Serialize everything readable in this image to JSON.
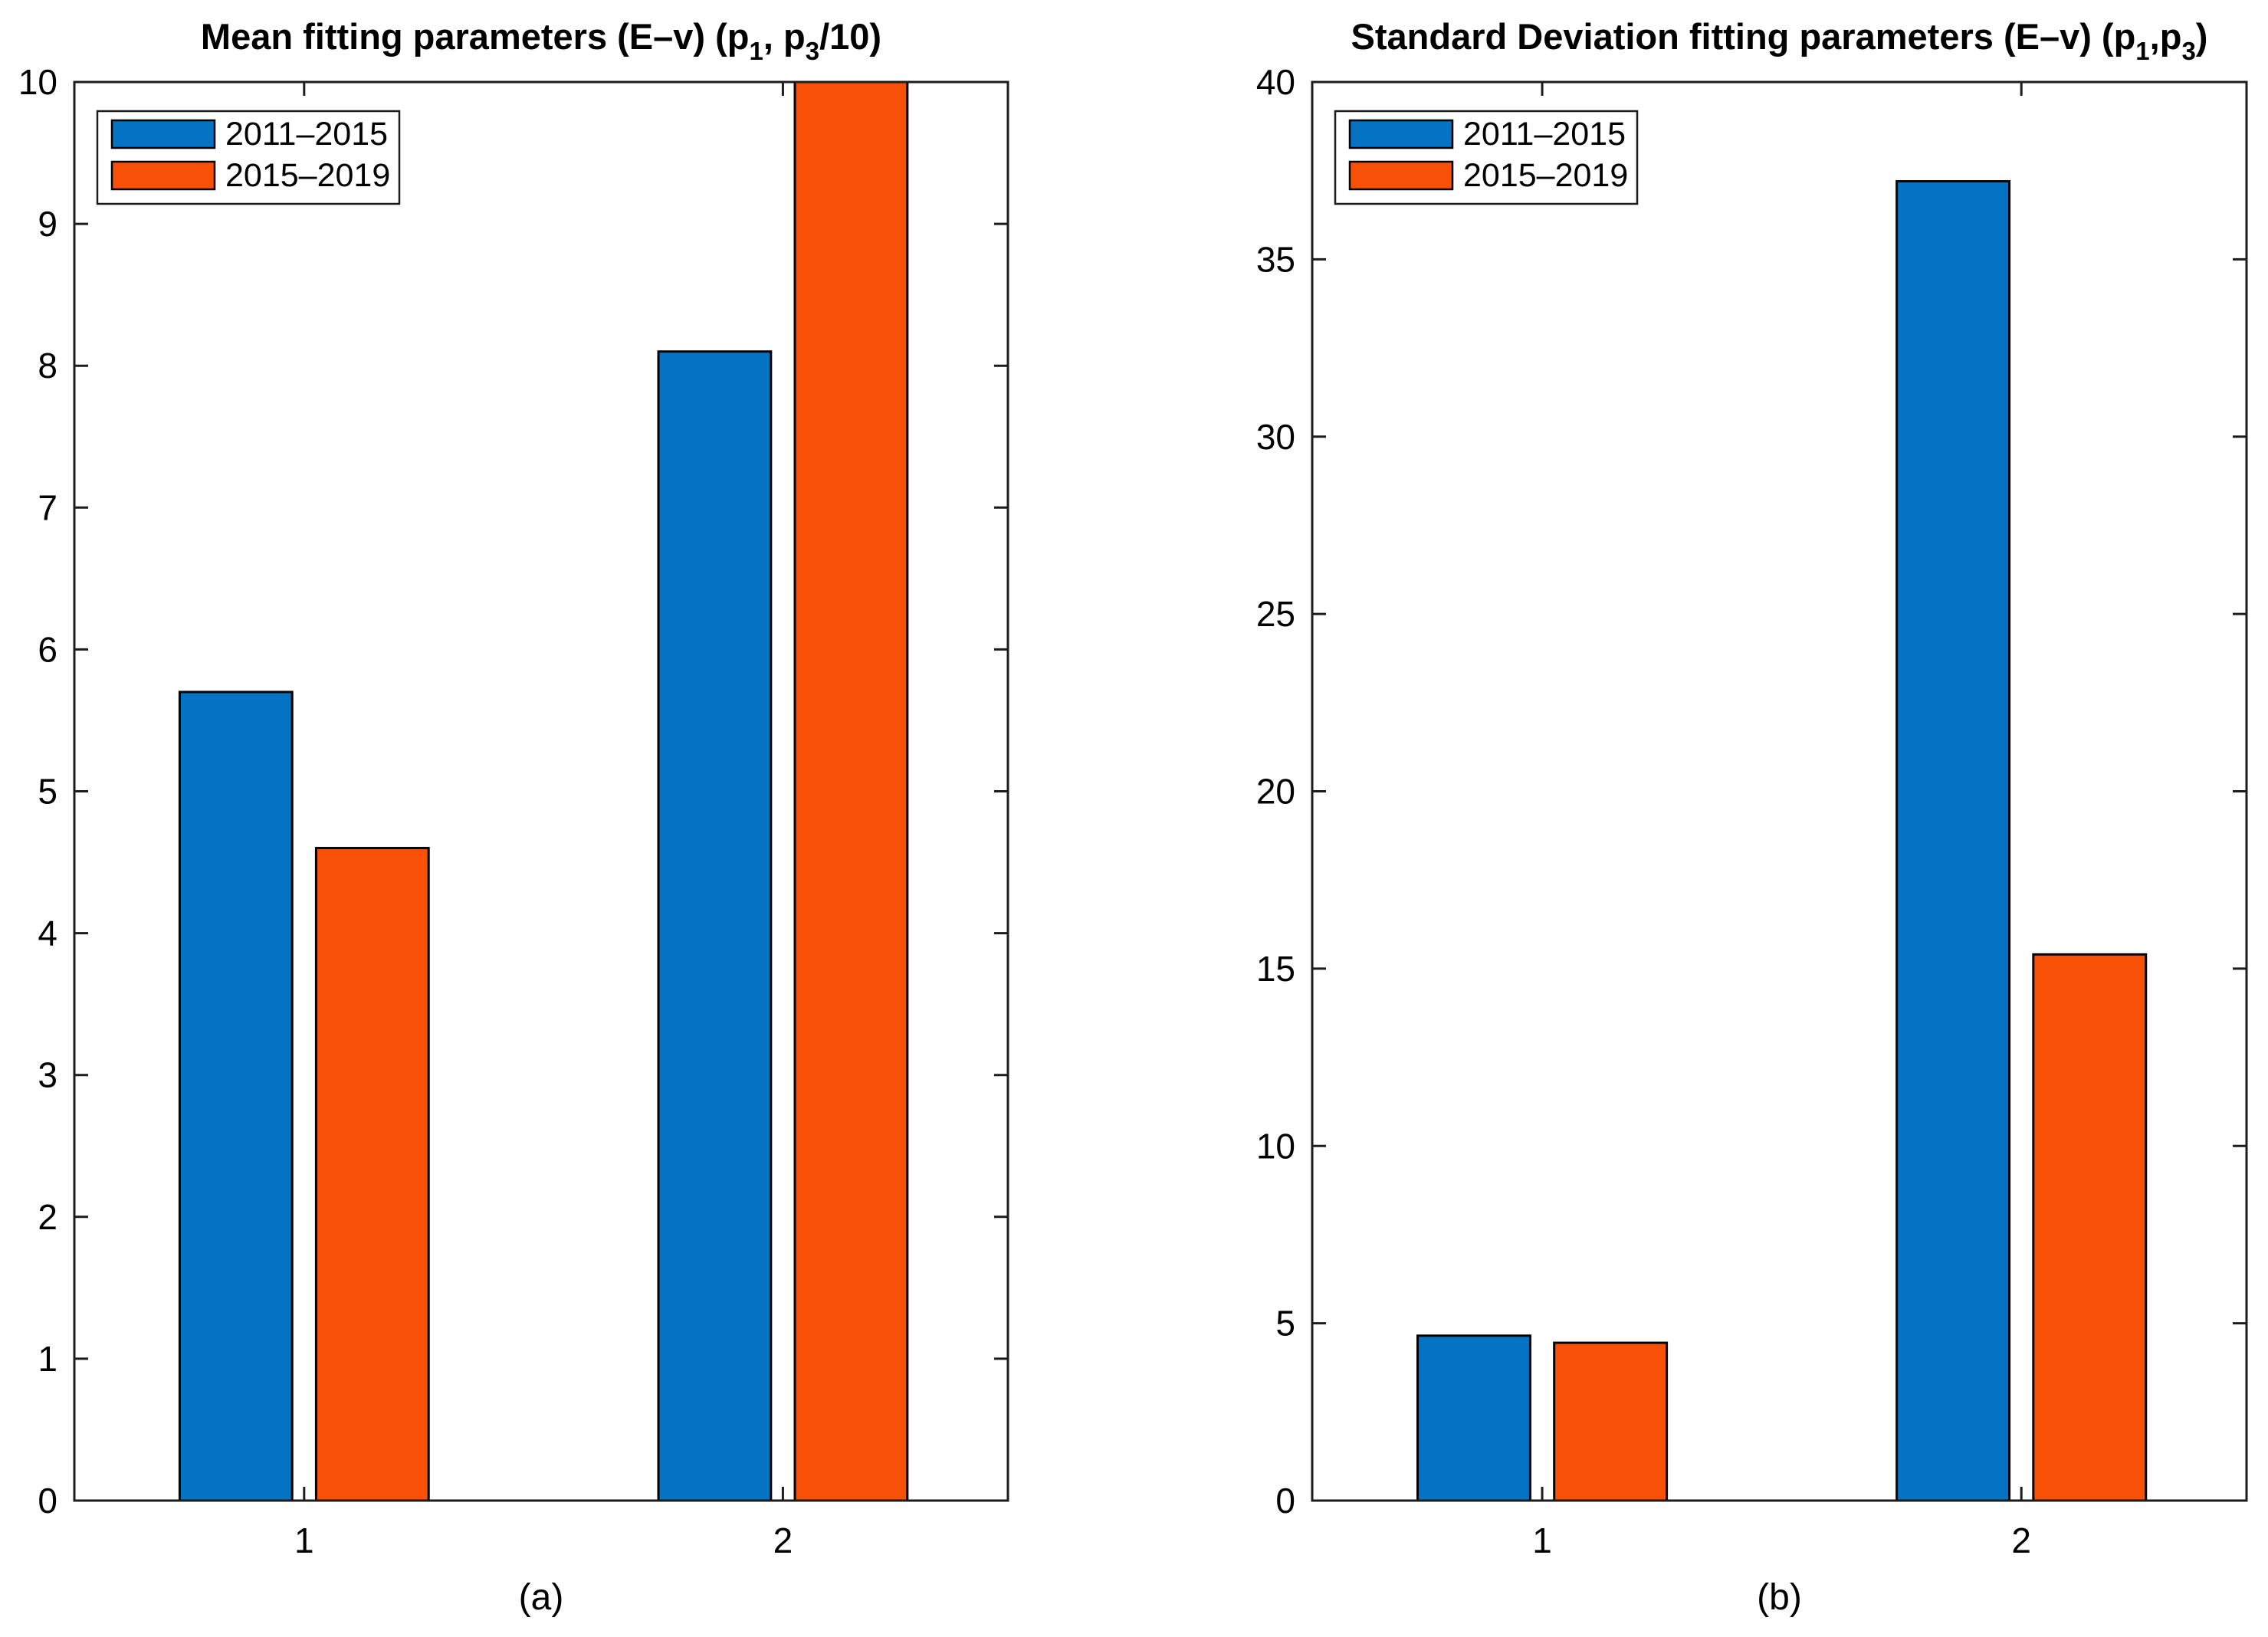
{
  "figure": {
    "background": "#ffffff",
    "panel_captions": [
      "(a)",
      "(b)"
    ]
  },
  "style": {
    "axis_color": "#1c1c1c",
    "bar_edge_color": "#000000",
    "text_color": "#000000",
    "legend_background": "#ffffff",
    "series_colors": {
      "2011-2015": "#0473C4",
      "2015-2019": "#F85107"
    }
  },
  "chart_data": [
    {
      "type": "bar",
      "panel": "a",
      "caption": "(a)",
      "title_parts": [
        {
          "text": "Mean fitting parameters (E–v) (p"
        },
        {
          "text": "1",
          "sub": true
        },
        {
          "text": ", p"
        },
        {
          "text": "3",
          "sub": true
        },
        {
          "text": "/10)"
        }
      ],
      "categories": [
        "1",
        "2"
      ],
      "x_positions": [
        1,
        2
      ],
      "series": [
        {
          "name": "2011–2015",
          "color": "#0473C4",
          "values": [
            5.7,
            8.1
          ]
        },
        {
          "name": "2015–2019",
          "color": "#F85107",
          "values": [
            4.6,
            10.0
          ]
        }
      ],
      "xlabel": "",
      "ylabel": "",
      "ylim": [
        0,
        10
      ],
      "yticks": [
        0,
        1,
        2,
        3,
        4,
        5,
        6,
        7,
        8,
        9,
        10
      ],
      "xlim": [
        0.52,
        2.47
      ],
      "grid": false,
      "axes_box": true,
      "tick_dir": "in",
      "legend": {
        "position": "top-left",
        "entries": [
          "2011–2015",
          "2015–2019"
        ]
      },
      "bar_width_units": 0.235,
      "bar_offset_units": 0.1425
    },
    {
      "type": "bar",
      "panel": "b",
      "caption": "(b)",
      "title_parts": [
        {
          "text": "Standard Deviation fitting parameters (E–v) (p"
        },
        {
          "text": "1",
          "sub": true
        },
        {
          "text": ",p"
        },
        {
          "text": "3",
          "sub": true
        },
        {
          "text": ")"
        }
      ],
      "categories": [
        "1",
        "2"
      ],
      "x_positions": [
        1,
        2
      ],
      "series": [
        {
          "name": "2011–2015",
          "color": "#0473C4",
          "values": [
            4.65,
            37.2
          ]
        },
        {
          "name": "2015–2019",
          "color": "#F85107",
          "values": [
            4.45,
            15.4
          ]
        }
      ],
      "xlabel": "",
      "ylabel": "",
      "ylim": [
        0,
        40
      ],
      "yticks": [
        0,
        5,
        10,
        15,
        20,
        25,
        30,
        35,
        40
      ],
      "xlim": [
        0.52,
        2.47
      ],
      "grid": false,
      "axes_box": true,
      "tick_dir": "in",
      "legend": {
        "position": "top-left",
        "entries": [
          "2011–2015",
          "2015–2019"
        ]
      },
      "bar_width_units": 0.235,
      "bar_offset_units": 0.1425
    }
  ]
}
